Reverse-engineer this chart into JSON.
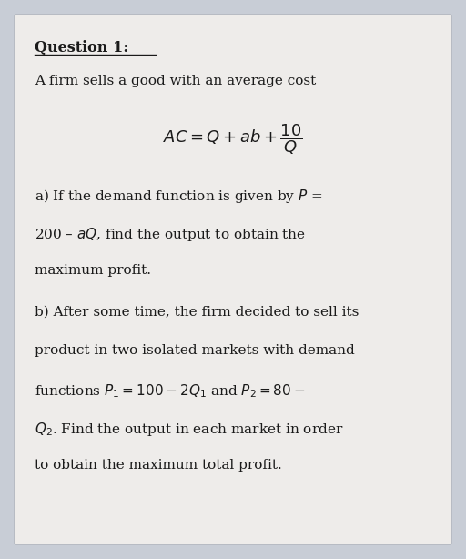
{
  "background_color": "#c8cdd6",
  "card_color": "#eeecea",
  "title": "Question 1:",
  "intro_line": "A firm sells a good with an average cost",
  "part_a_lines": [
    "a) If the demand function is given by $P$ =",
    "200 – $aQ$, find the output to obtain the",
    "maximum profit."
  ],
  "part_b_lines": [
    "b) After some time, the firm decided to sell its",
    "product in two isolated markets with demand",
    "functions $P_1 = 100 - 2Q_1$ and $P_2 = 80 -$",
    "$Q_2$. Find the output in each market in order",
    "to obtain the maximum total profit."
  ],
  "text_color": "#1a1a1a",
  "font_size_title": 11.5,
  "font_size_body": 11.0,
  "font_size_formula": 13
}
